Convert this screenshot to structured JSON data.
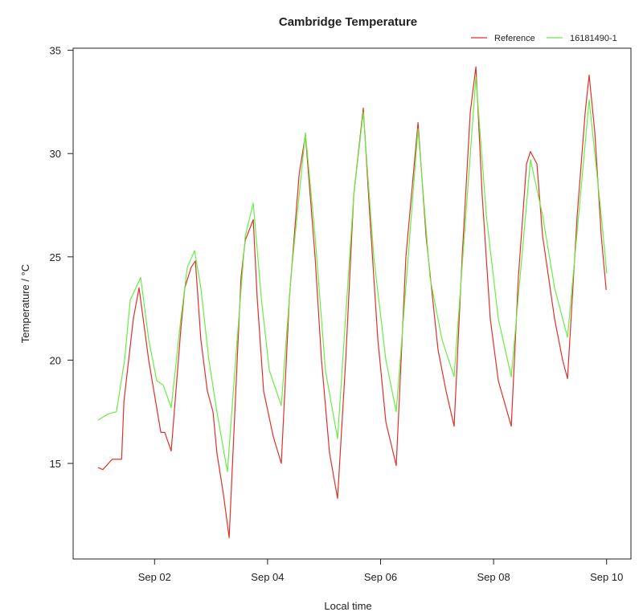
{
  "chart_data": {
    "type": "line",
    "title": "Cambridge Temperature",
    "xlabel": "Local time",
    "ylabel": "Temperature / °C",
    "ylim": [
      10.5,
      35.3
    ],
    "xlim": [
      "08-30 22:00",
      "09-10 11:00"
    ],
    "x_ticks": [
      {
        "label": "Sep 02",
        "t": "09-02 00:00"
      },
      {
        "label": "Sep 04",
        "t": "09-04 00:00"
      },
      {
        "label": "Sep 06",
        "t": "09-06 00:00"
      },
      {
        "label": "Sep 08",
        "t": "09-08 00:00"
      },
      {
        "label": "Sep 10",
        "t": "09-10 00:00"
      }
    ],
    "y_ticks": [
      "15",
      "20",
      "25",
      "30",
      "35"
    ],
    "grid": false,
    "legend_position": "top-right, outside plot",
    "series": [
      {
        "name": "Reference",
        "color": "#e0302a",
        "points": [
          [
            "09-01 00:00",
            14.8
          ],
          [
            "09-01 02:00",
            14.7
          ],
          [
            "09-01 06:00",
            15.2
          ],
          [
            "09-01 10:00",
            15.2
          ],
          [
            "09-01 11:00",
            18.0
          ],
          [
            "09-01 15:00",
            22.0
          ],
          [
            "09-01 17:25",
            23.5
          ],
          [
            "09-01 21:30",
            20.0
          ],
          [
            "09-02 02:40",
            16.5
          ],
          [
            "09-02 04:20",
            16.5
          ],
          [
            "09-02 07:05",
            15.6
          ],
          [
            "09-02 11:10",
            21.5
          ],
          [
            "09-02 12:50",
            23.5
          ],
          [
            "09-02 15:35",
            24.5
          ],
          [
            "09-02 17:20",
            24.8
          ],
          [
            "09-02 19:40",
            21.0
          ],
          [
            "09-02 22:25",
            18.5
          ],
          [
            "09-03 00:50",
            17.5
          ],
          [
            "09-03 02:30",
            15.5
          ],
          [
            "09-03 05:15",
            13.5
          ],
          [
            "09-03 07:40",
            11.4
          ],
          [
            "09-03 11:05",
            20.0
          ],
          [
            "09-03 12:45",
            24.0
          ],
          [
            "09-03 14:30",
            25.8
          ],
          [
            "09-03 17:55",
            26.8
          ],
          [
            "09-03 19:35",
            23.0
          ],
          [
            "09-03 22:20",
            18.5
          ],
          [
            "09-04 02:25",
            16.3
          ],
          [
            "09-04 05:50",
            15.0
          ],
          [
            "09-04 09:15",
            23.0
          ],
          [
            "09-04 13:25",
            29.0
          ],
          [
            "09-04 16:05",
            30.9
          ],
          [
            "09-04 20:10",
            25.0
          ],
          [
            "09-04 22:55",
            20.0
          ],
          [
            "09-05 02:20",
            15.5
          ],
          [
            "09-05 05:45",
            13.3
          ],
          [
            "09-05 09:10",
            20.0
          ],
          [
            "09-05 12:35",
            28.0
          ],
          [
            "09-05 16:40",
            32.2
          ],
          [
            "09-05 19:25",
            27.0
          ],
          [
            "09-05 22:50",
            21.0
          ],
          [
            "09-06 02:15",
            17.0
          ],
          [
            "09-06 06:40",
            14.9
          ],
          [
            "09-06 10:45",
            25.0
          ],
          [
            "09-06 15:55",
            31.5
          ],
          [
            "09-06 19:20",
            26.0
          ],
          [
            "09-07 00:25",
            20.5
          ],
          [
            "09-07 03:50",
            18.5
          ],
          [
            "09-07 07:15",
            16.8
          ],
          [
            "09-07 10:40",
            25.0
          ],
          [
            "09-07 14:05",
            32.0
          ],
          [
            "09-07 16:30",
            34.2
          ],
          [
            "09-07 19:10",
            28.0
          ],
          [
            "09-07 22:35",
            22.0
          ],
          [
            "09-08 02:00",
            19.0
          ],
          [
            "09-08 07:30",
            16.8
          ],
          [
            "09-08 10:30",
            24.0
          ],
          [
            "09-08 14:00",
            29.5
          ],
          [
            "09-08 15:40",
            30.1
          ],
          [
            "09-08 18:25",
            29.5
          ],
          [
            "09-08 20:50",
            26.0
          ],
          [
            "09-09 01:55",
            22.0
          ],
          [
            "09-09 05:20",
            20.0
          ],
          [
            "09-09 07:25",
            19.1
          ],
          [
            "09-09 11:30",
            27.0
          ],
          [
            "09-09 14:55",
            32.0
          ],
          [
            "09-09 16:35",
            33.8
          ],
          [
            "09-09 19:00",
            31.0
          ],
          [
            "09-09 21:45",
            26.0
          ],
          [
            "09-09 23:50",
            23.4
          ]
        ]
      },
      {
        "name": "16181490-1",
        "color": "#66ee44",
        "points": [
          [
            "09-01 00:00",
            17.1
          ],
          [
            "09-01 04:25",
            17.4
          ],
          [
            "09-01 07:50",
            17.5
          ],
          [
            "09-01 11:15",
            20.0
          ],
          [
            "09-01 13:40",
            22.9
          ],
          [
            "09-01 18:05",
            24.0
          ],
          [
            "09-01 21:30",
            21.0
          ],
          [
            "09-02 00:55",
            19.0
          ],
          [
            "09-02 03:40",
            18.8
          ],
          [
            "09-02 07:05",
            17.7
          ],
          [
            "09-02 11:10",
            22.0
          ],
          [
            "09-02 13:55",
            24.5
          ],
          [
            "09-02 17:00",
            25.3
          ],
          [
            "09-02 19:40",
            23.5
          ],
          [
            "09-02 23:05",
            20.0
          ],
          [
            "09-03 02:30",
            17.5
          ],
          [
            "09-03 06:55",
            14.6
          ],
          [
            "09-03 11:05",
            21.0
          ],
          [
            "09-03 14:30",
            26.0
          ],
          [
            "09-03 17:55",
            27.6
          ],
          [
            "09-03 21:20",
            23.0
          ],
          [
            "09-04 00:45",
            19.5
          ],
          [
            "09-04 05:50",
            17.8
          ],
          [
            "09-04 09:55",
            24.0
          ],
          [
            "09-04 16:05",
            31.0
          ],
          [
            "09-04 20:10",
            26.0
          ],
          [
            "09-05 00:35",
            19.5
          ],
          [
            "09-05 05:45",
            16.2
          ],
          [
            "09-05 12:35",
            28.0
          ],
          [
            "09-05 16:40",
            32.0
          ],
          [
            "09-05 21:05",
            25.0
          ],
          [
            "09-06 02:15",
            20.0
          ],
          [
            "09-06 06:40",
            17.5
          ],
          [
            "09-06 15:55",
            31.2
          ],
          [
            "09-06 21:00",
            24.0
          ],
          [
            "09-07 02:05",
            21.0
          ],
          [
            "09-07 07:15",
            19.2
          ],
          [
            "09-07 16:30",
            33.7
          ],
          [
            "09-07 20:55",
            27.0
          ],
          [
            "09-08 02:00",
            22.0
          ],
          [
            "09-08 07:30",
            19.2
          ],
          [
            "09-08 15:40",
            29.7
          ],
          [
            "09-08 20:50",
            27.0
          ],
          [
            "09-09 01:55",
            23.5
          ],
          [
            "09-09 07:25",
            21.1
          ],
          [
            "09-09 16:35",
            32.6
          ],
          [
            "09-09 21:45",
            27.0
          ],
          [
            "09-10 00:05",
            24.2
          ]
        ]
      }
    ]
  }
}
